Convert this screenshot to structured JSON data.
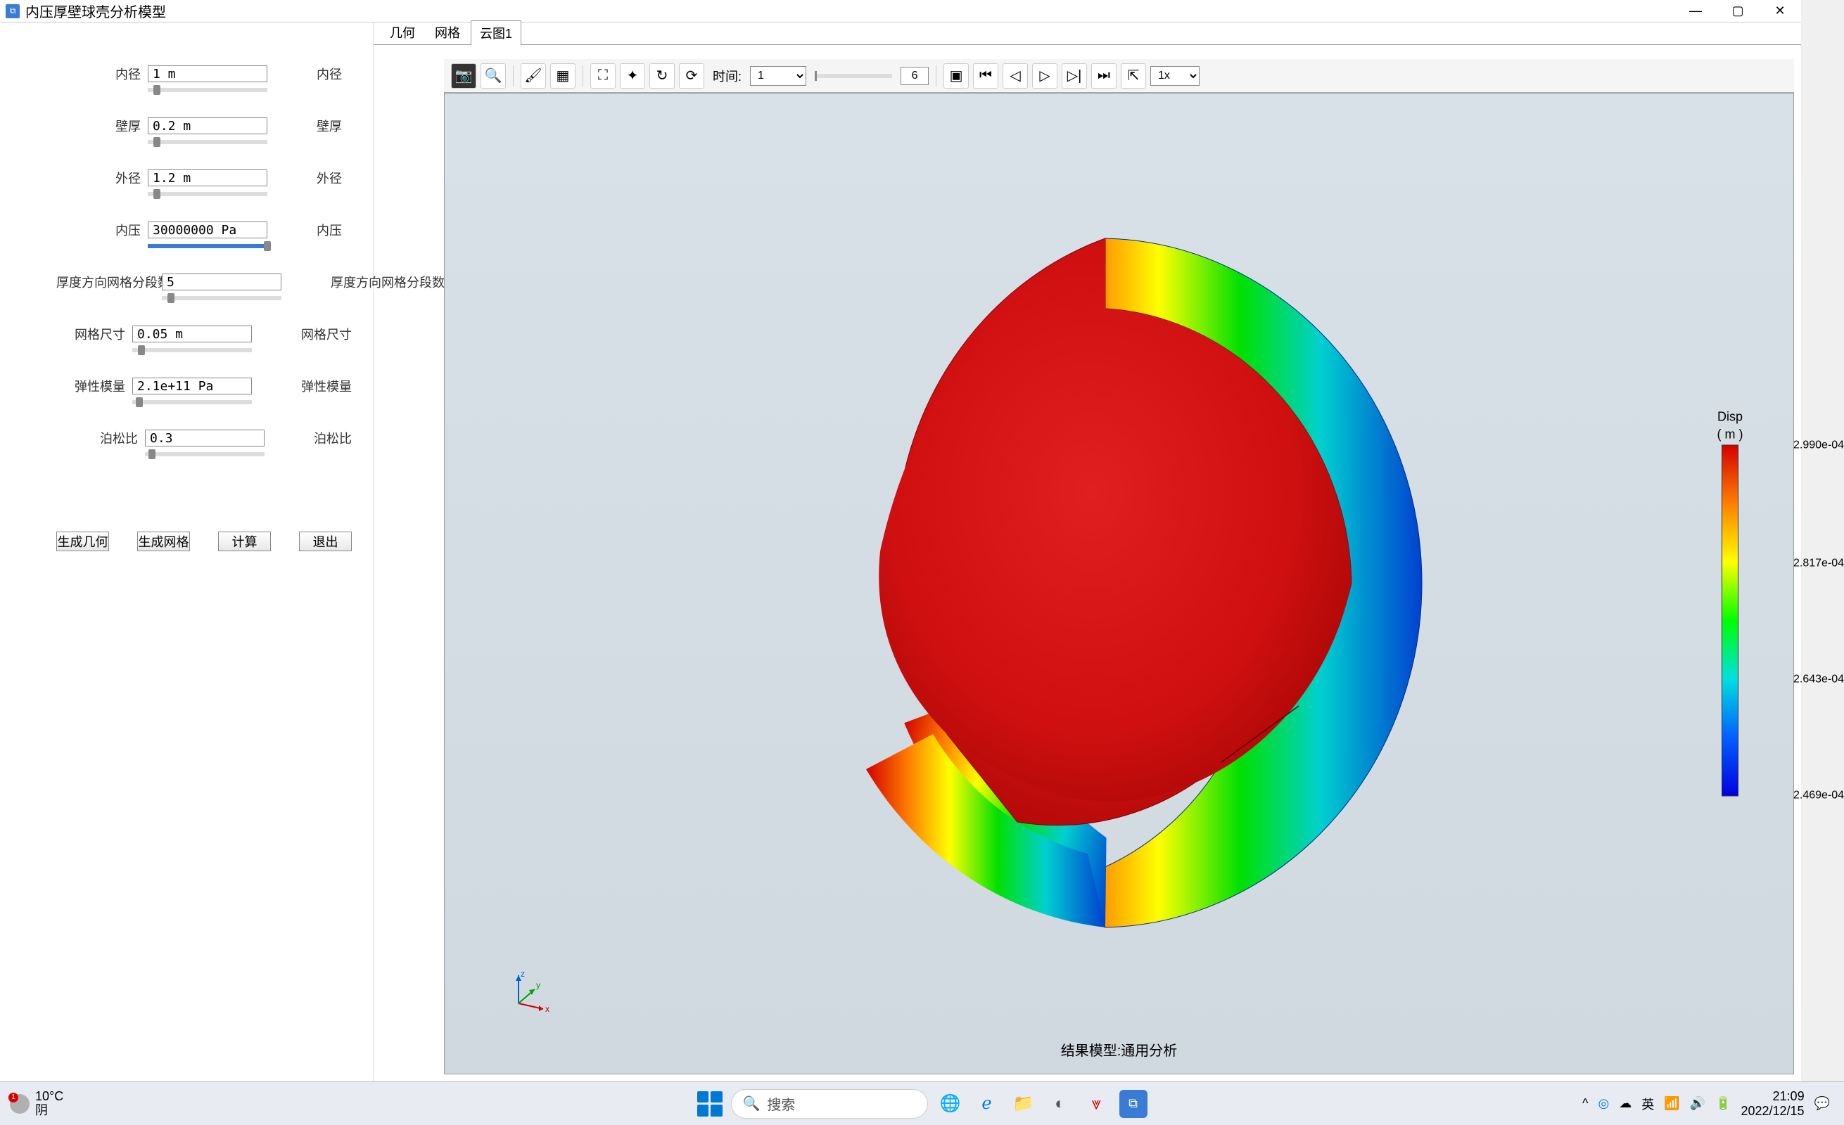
{
  "window": {
    "title": "内压厚壁球壳分析模型"
  },
  "params": [
    {
      "label": "内径",
      "value": "1 m",
      "desc": "内径",
      "slider_pos": 0.05
    },
    {
      "label": "壁厚",
      "value": "0.2 m",
      "desc": "壁厚",
      "slider_pos": 0.05
    },
    {
      "label": "外径",
      "value": "1.2 m",
      "desc": "外径",
      "slider_pos": 0.05
    },
    {
      "label": "内压",
      "value": "30000000 Pa",
      "desc": "内压",
      "slider_pos": 1.0,
      "is_pressure": true
    },
    {
      "label": "厚度方向网格分段数",
      "value": "5",
      "desc": "厚度方向网格分段数",
      "slider_pos": 0.05,
      "long_label": true
    },
    {
      "label": "网格尺寸",
      "value": "0.05 m",
      "desc": "网格尺寸",
      "slider_pos": 0.05
    },
    {
      "label": "弹性模量",
      "value": "2.1e+11 Pa",
      "desc": "弹性模量",
      "slider_pos": 0.03
    },
    {
      "label": "泊松比",
      "value": "0.3",
      "desc": "泊松比",
      "slider_pos": 0.03
    }
  ],
  "buttons": {
    "gen_geom": "生成几何",
    "gen_mesh": "生成网格",
    "compute": "计算",
    "exit": "退出"
  },
  "tabs": [
    {
      "label": "几何",
      "active": false
    },
    {
      "label": "网格",
      "active": false
    },
    {
      "label": "云图1",
      "active": true
    }
  ],
  "toolbar": {
    "time_label": "时间:",
    "time_value": "1",
    "frame_value": "6",
    "speed": "1x"
  },
  "legend": {
    "title": "Disp",
    "unit": "( m )",
    "values": [
      "2.990e-04",
      "2.817e-04",
      "2.643e-04",
      "2.469e-04"
    ],
    "colors": [
      "#d40000",
      "#ff8000",
      "#ffff00",
      "#00ff00",
      "#00e0e0",
      "#0060ff",
      "#0000e0"
    ]
  },
  "result_label": "结果模型:通用分析",
  "axes": {
    "x": "x",
    "y": "y",
    "z": "z"
  },
  "taskbar": {
    "weather_temp": "10°C",
    "weather_desc": "阴",
    "weather_badge": "1",
    "search": "搜索",
    "ime": "英",
    "time": "21:09",
    "date": "2022/12/15"
  }
}
